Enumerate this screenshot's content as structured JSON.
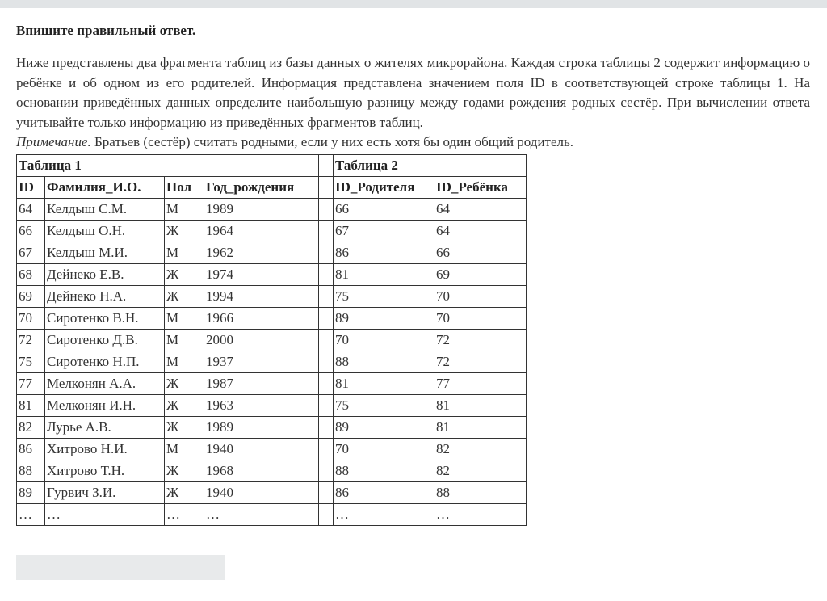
{
  "instruction": "Впишите правильный ответ.",
  "task_text": "Ниже представлены два фрагмента таблиц из базы данных о жителях микрорайона. Каждая строка таблицы 2 содержит информацию о ребёнке и об одном из его родителей. Информация представлена значением поля  ID в соответствующей строке таблицы 1. На основании приведённых данных определите наибольшую разницу между годами рождения родных сестёр. При вычислении ответа учитывайте только информацию из приведённых фрагментов таблиц.",
  "note_label": "Примечание.",
  "note_text": " Братьев (сестёр) считать родными, если у них есть хотя бы один общий родитель.",
  "table1": {
    "title": "Таблица 1",
    "headers": [
      "ID",
      "Фамилия_И.О.",
      "Пол",
      "Год_рождения"
    ],
    "rows": [
      [
        "64",
        "Келдыш С.М.",
        "М",
        "1989"
      ],
      [
        "66",
        "Келдыш О.Н.",
        "Ж",
        "1964"
      ],
      [
        "67",
        "Келдыш М.И.",
        "М",
        "1962"
      ],
      [
        "68",
        "Дейнеко Е.В.",
        "Ж",
        "1974"
      ],
      [
        "69",
        "Дейнеко Н.А.",
        "Ж",
        "1994"
      ],
      [
        "70",
        "Сиротенко В.Н.",
        "М",
        "1966"
      ],
      [
        "72",
        "Сиротенко Д.В.",
        "М",
        "2000"
      ],
      [
        "75",
        "Сиротенко Н.П.",
        "М",
        "1937"
      ],
      [
        "77",
        "Мелконян А.А.",
        "Ж",
        "1987"
      ],
      [
        "81",
        "Мелконян И.Н.",
        "Ж",
        "1963"
      ],
      [
        "82",
        "Лурье А.В.",
        "Ж",
        "1989"
      ],
      [
        "86",
        "Хитрово Н.И.",
        "М",
        "1940"
      ],
      [
        "88",
        "Хитрово Т.Н.",
        "Ж",
        "1968"
      ],
      [
        "89",
        "Гурвич З.И.",
        "Ж",
        "1940"
      ],
      [
        "…",
        "…",
        "…",
        "…"
      ]
    ]
  },
  "table2": {
    "title": "Таблица 2",
    "headers": [
      "ID_Родителя",
      "ID_Ребёнка"
    ],
    "rows": [
      [
        "66",
        "64"
      ],
      [
        "67",
        "64"
      ],
      [
        "86",
        "66"
      ],
      [
        "81",
        "69"
      ],
      [
        "75",
        "70"
      ],
      [
        "89",
        "70"
      ],
      [
        "70",
        "72"
      ],
      [
        "88",
        "72"
      ],
      [
        "81",
        "77"
      ],
      [
        "75",
        "81"
      ],
      [
        "89",
        "81"
      ],
      [
        "70",
        "82"
      ],
      [
        "88",
        "82"
      ],
      [
        "86",
        "88"
      ],
      [
        "…",
        "…"
      ]
    ]
  },
  "answer": {
    "value": "",
    "placeholder": ""
  }
}
